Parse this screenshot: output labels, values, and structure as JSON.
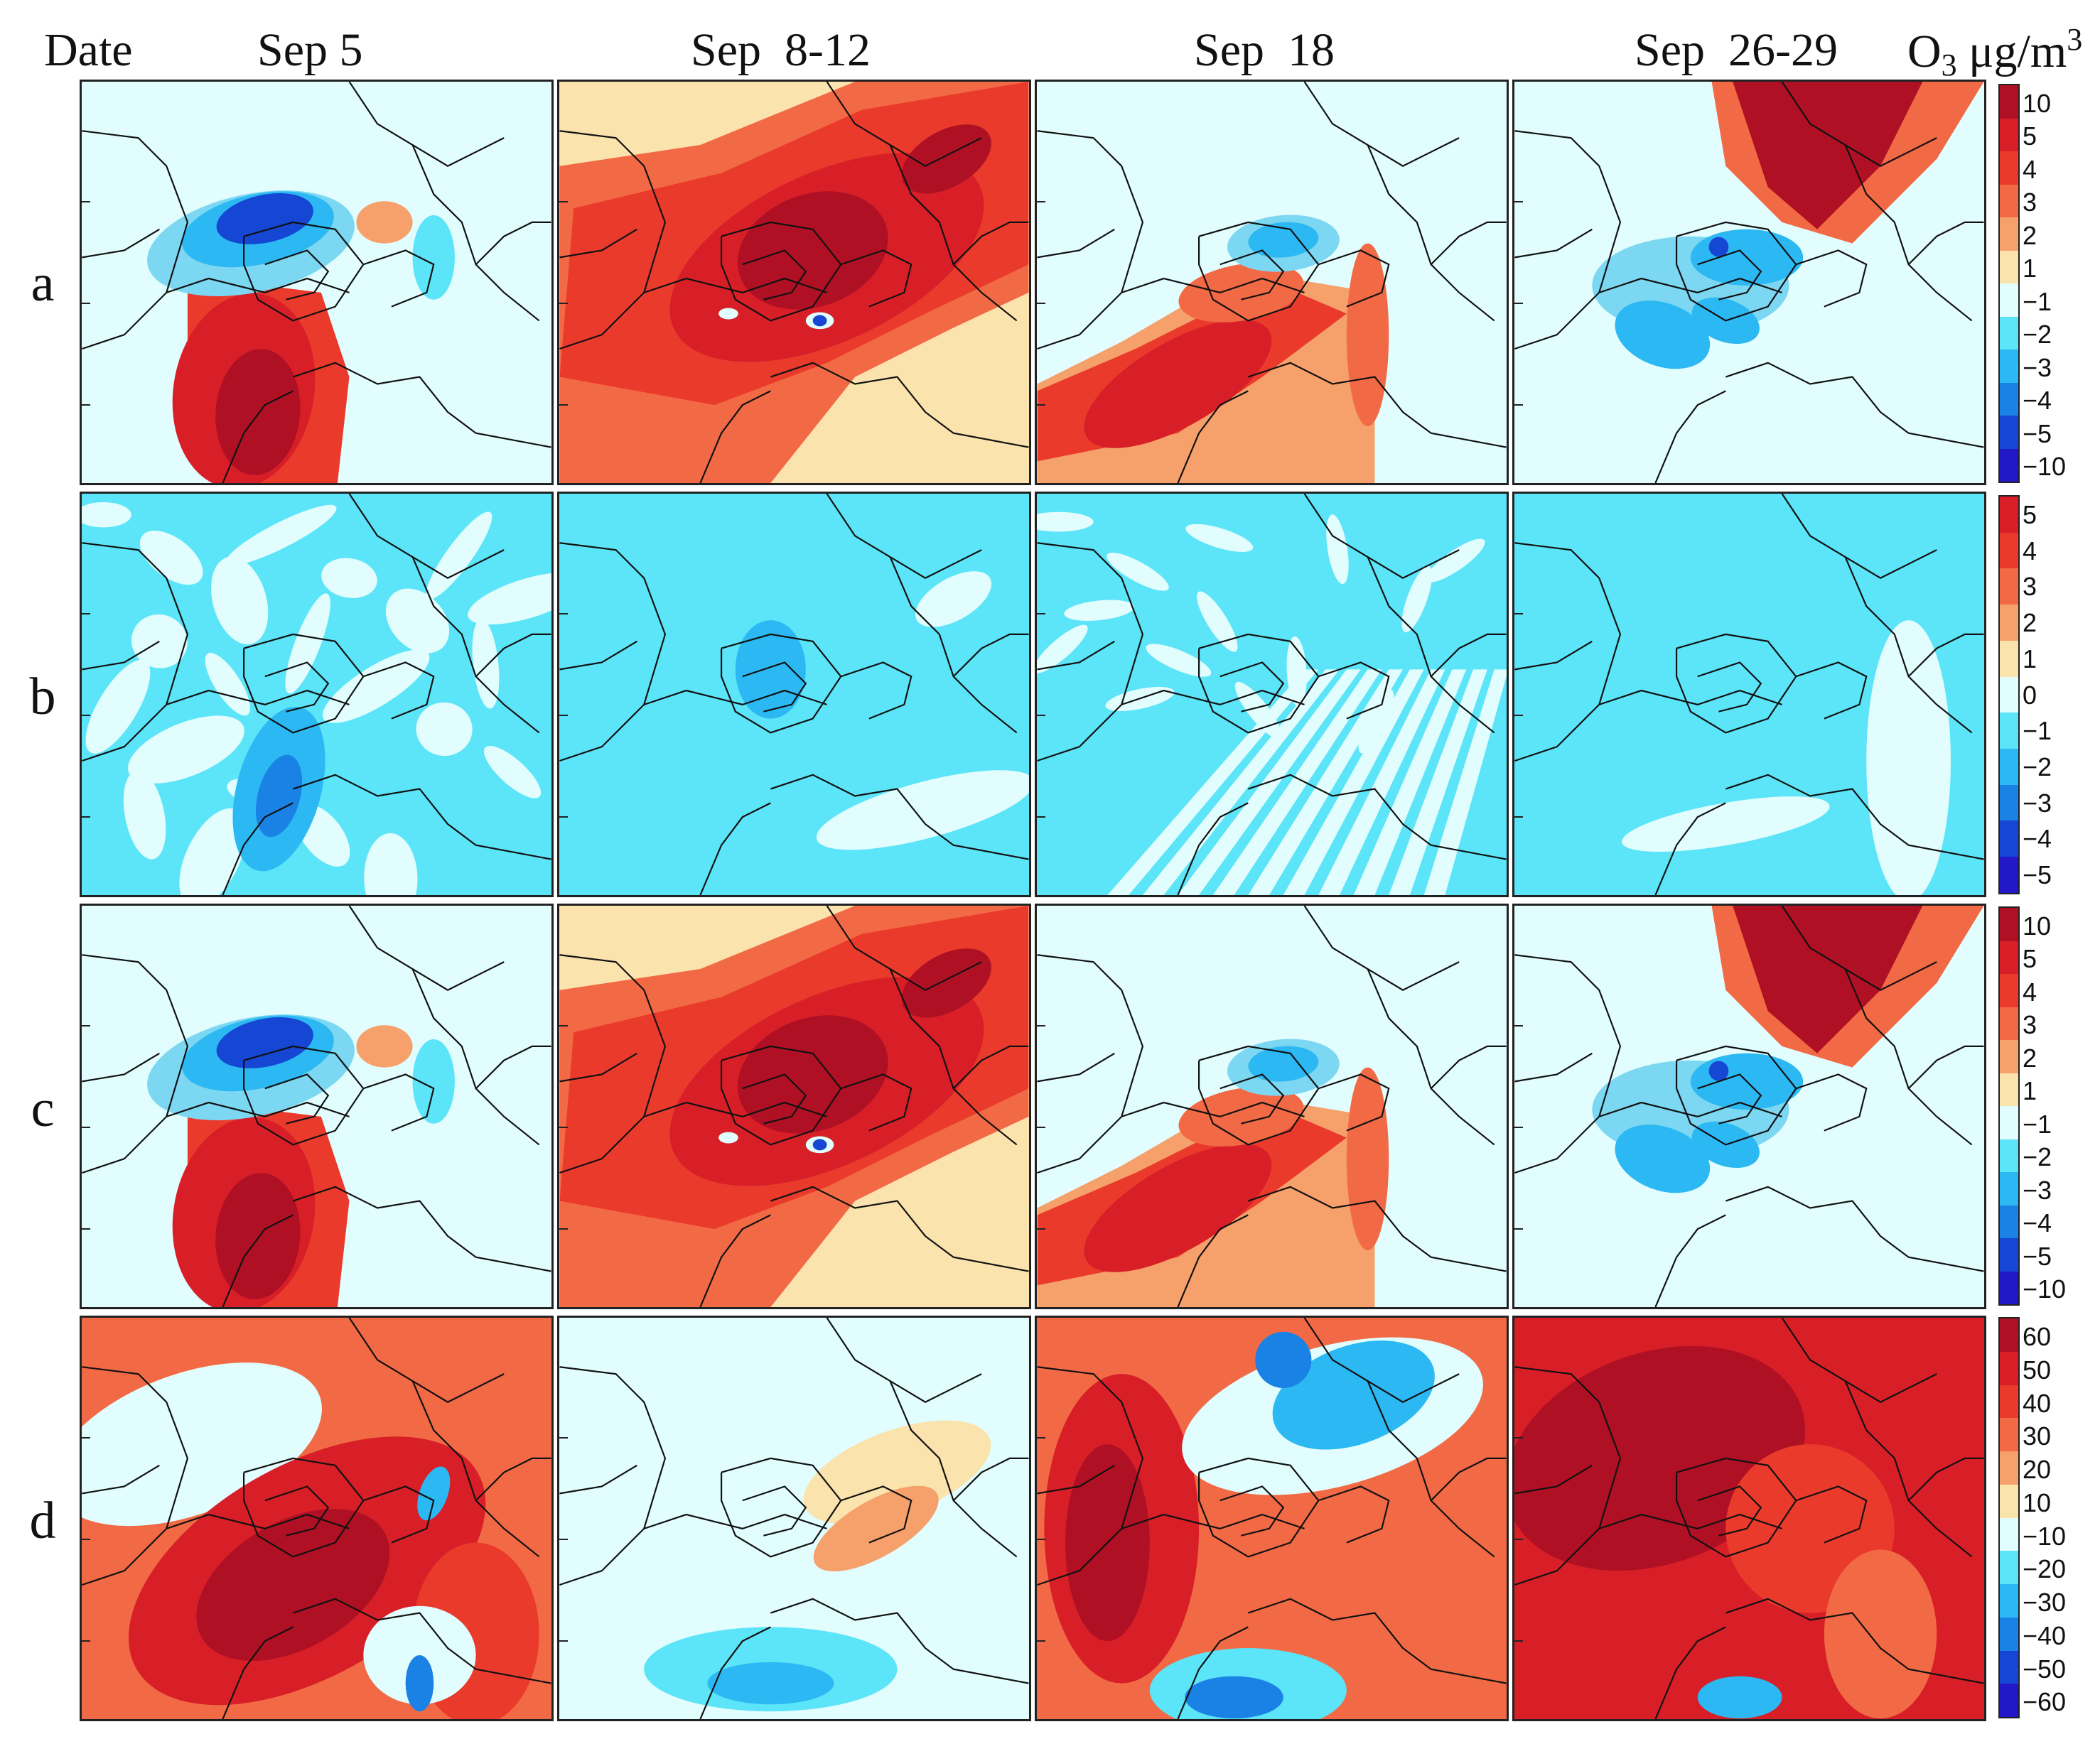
{
  "headers": {
    "date": "Date",
    "columns": [
      "Sep 5",
      "Sep  8-12",
      "Sep  18",
      "Sep  26-29"
    ],
    "unit_prefix": "O",
    "unit_sub": "3",
    "unit_mid": " μg/m",
    "unit_sup": "3"
  },
  "rows": [
    {
      "label": "a",
      "legend": [
        "10",
        "5",
        "4",
        "3",
        "2",
        "1",
        "−1",
        "−2",
        "−3",
        "−4",
        "−5",
        "−10"
      ]
    },
    {
      "label": "b",
      "legend": [
        "5",
        "4",
        "3",
        "2",
        "1",
        "0",
        "−1",
        "−2",
        "−3",
        "−4",
        "−5"
      ]
    },
    {
      "label": "c",
      "legend": [
        "10",
        "5",
        "4",
        "3",
        "2",
        "1",
        "−1",
        "−2",
        "−3",
        "−4",
        "−5",
        "−10"
      ]
    },
    {
      "label": "d",
      "legend": [
        "60",
        "50",
        "40",
        "30",
        "20",
        "10",
        "−10",
        "−20",
        "−30",
        "−40",
        "−50",
        "−60"
      ]
    }
  ],
  "colors": {
    "neutral": "#e1fdfd",
    "warm": [
      "#b01024",
      "#d81f28",
      "#ea3a2c",
      "#f26a45",
      "#f6a06b",
      "#fbe3ad"
    ],
    "cool": [
      "#5ce4f8",
      "#2cb8f2",
      "#1a82e4",
      "#1646d4",
      "#2218c8"
    ]
  },
  "icons": [
    "map-boundary-icon",
    "colorbar-icon"
  ]
}
